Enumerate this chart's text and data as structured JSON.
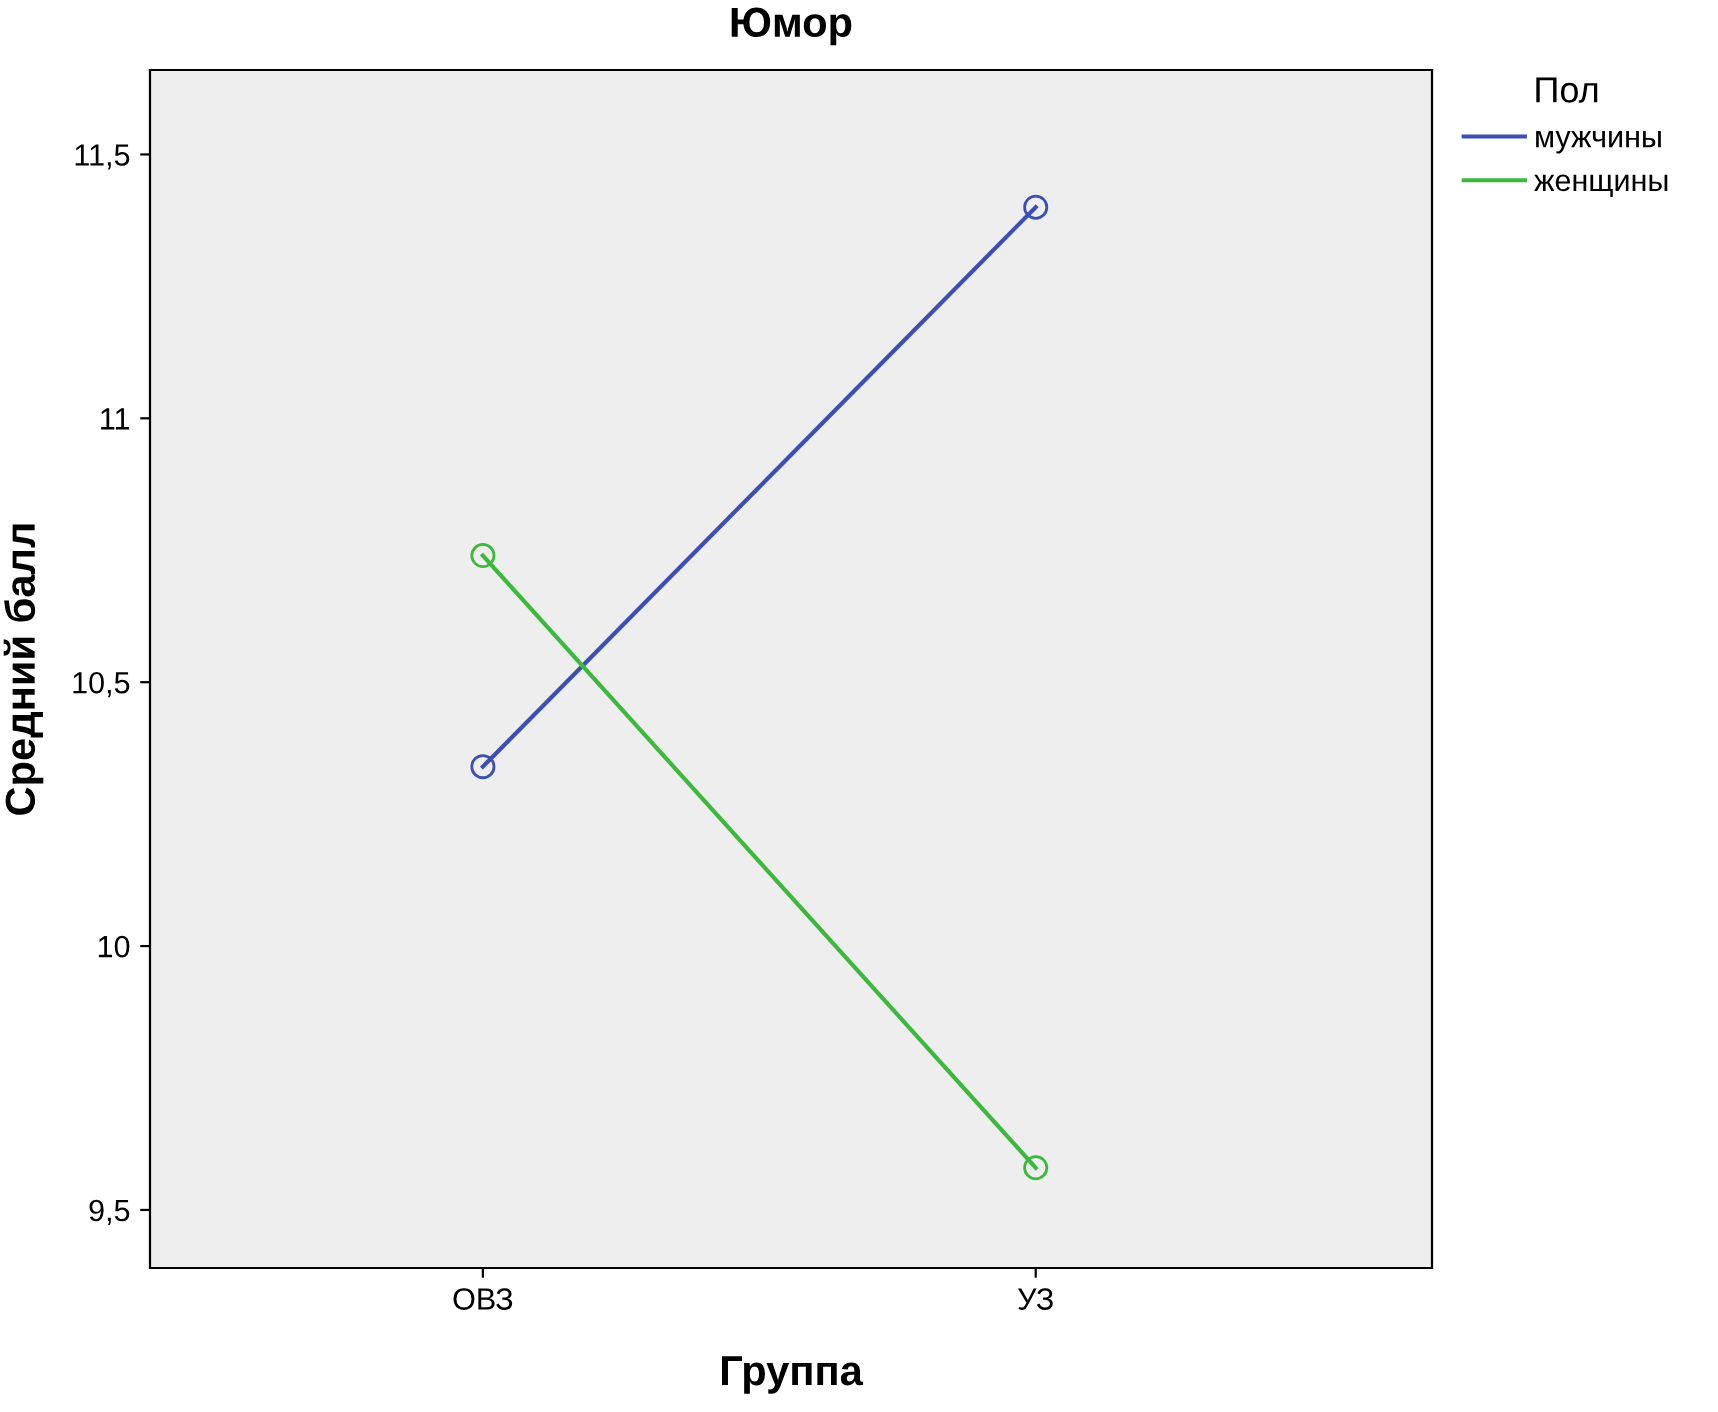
{
  "chart_data": {
    "type": "line",
    "title": "Юмор",
    "xlabel": "Группа",
    "ylabel": "Средний балл",
    "legend_title": "Пол",
    "categories": [
      "ОВЗ",
      "УЗ"
    ],
    "series": [
      {
        "name": "мужчины",
        "color": "#3c4fb4",
        "values": [
          10.34,
          11.4
        ]
      },
      {
        "name": "женщины",
        "color": "#3cb93c",
        "values": [
          10.74,
          9.58
        ]
      }
    ],
    "ylim": [
      9.39,
      11.66
    ],
    "yticks": [
      {
        "value": 9.5,
        "label": "9,5"
      },
      10,
      {
        "value": 10.5,
        "label": "10,5"
      },
      11,
      {
        "value": 11.5,
        "label": "11,5"
      }
    ],
    "grid": false,
    "legend": "top right",
    "marker": "circle",
    "line_style": "solid"
  }
}
